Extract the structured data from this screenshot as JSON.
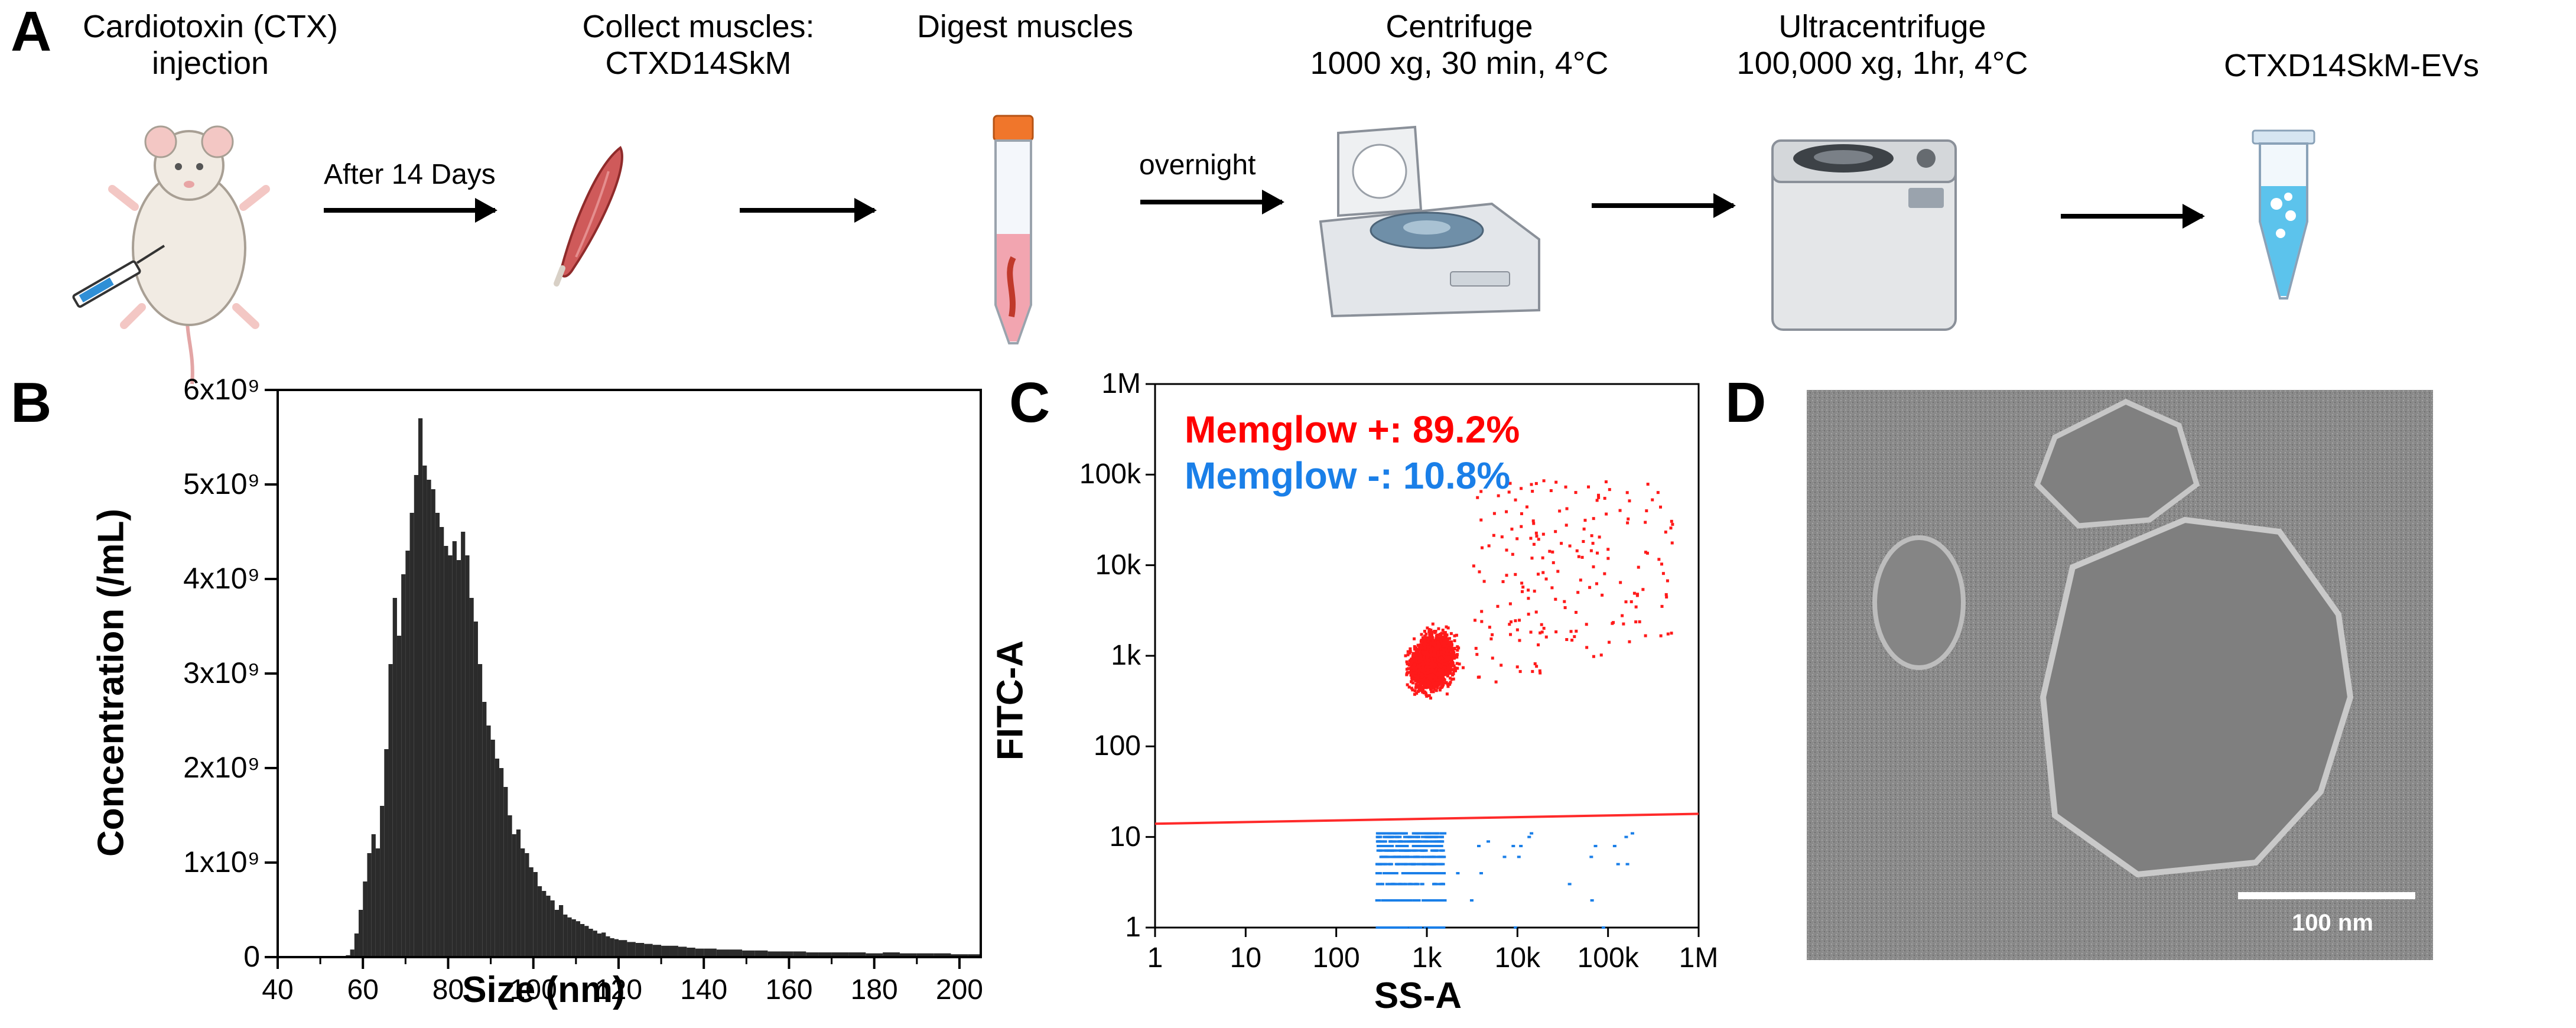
{
  "panels": {
    "a": "A",
    "b": "B",
    "c": "C",
    "d": "D"
  },
  "workflow": {
    "steps": [
      {
        "line1": "Cardiotoxin (CTX)",
        "line2": "injection"
      },
      {
        "line1": "Collect muscles:",
        "line2": "CTXD14SkM"
      },
      {
        "line1": "Digest muscles",
        "line2": ""
      },
      {
        "line1": "Centrifuge",
        "line2": "1000 xg, 30 min, 4°C"
      },
      {
        "line1": "Ultracentrifuge",
        "line2": "100,000 xg, 1hr, 4°C"
      },
      {
        "line1": "CTXD14SkM-EVs",
        "line2": ""
      }
    ],
    "arrow_labels": [
      "After 14 Days",
      "",
      "overnight",
      "",
      ""
    ]
  },
  "chart_data": [
    {
      "type": "bar",
      "id": "B",
      "title": "",
      "xlabel": "Size (nm)",
      "ylabel": "Concentration (/mL)",
      "xlim": [
        40,
        205
      ],
      "ylim": [
        0,
        6000000000
      ],
      "xticks": [
        "40",
        "60",
        "80",
        "100",
        "120",
        "140",
        "160",
        "180",
        "200"
      ],
      "yticks": [
        "0",
        "1x10⁹",
        "2x10⁹",
        "3x10⁹",
        "4x10⁹",
        "5x10⁹",
        "6x10⁹"
      ],
      "bin_width_nm": 1,
      "x": [
        56,
        57,
        58,
        59,
        60,
        61,
        62,
        63,
        64,
        65,
        66,
        67,
        68,
        69,
        70,
        71,
        72,
        73,
        74,
        75,
        76,
        77,
        78,
        79,
        80,
        81,
        82,
        83,
        84,
        85,
        86,
        87,
        88,
        89,
        90,
        91,
        92,
        93,
        94,
        95,
        96,
        97,
        98,
        99,
        100,
        101,
        102,
        103,
        104,
        105,
        106,
        107,
        108,
        109,
        110,
        111,
        112,
        113,
        114,
        115,
        116,
        117,
        118,
        119,
        120,
        122,
        124,
        126,
        128,
        130,
        132,
        134,
        136,
        138,
        140,
        143,
        146,
        149,
        152,
        155,
        158,
        161,
        164,
        167,
        170,
        174,
        178,
        182,
        186,
        190,
        194,
        198,
        202
      ],
      "values_e9": [
        0.02,
        0.08,
        0.25,
        0.5,
        0.8,
        1.1,
        1.3,
        1.15,
        1.6,
        2.2,
        3.1,
        3.8,
        3.4,
        4.05,
        4.3,
        4.7,
        5.1,
        5.7,
        5.2,
        5.05,
        4.95,
        4.7,
        4.55,
        4.35,
        4.25,
        4.4,
        4.2,
        4.5,
        4.25,
        3.8,
        3.55,
        3.1,
        2.7,
        2.45,
        2.3,
        2.1,
        2.0,
        1.8,
        1.5,
        1.3,
        1.35,
        1.15,
        1.1,
        0.95,
        0.9,
        0.75,
        0.7,
        0.65,
        0.6,
        0.5,
        0.55,
        0.45,
        0.42,
        0.4,
        0.38,
        0.35,
        0.33,
        0.3,
        0.28,
        0.25,
        0.26,
        0.22,
        0.2,
        0.19,
        0.18,
        0.16,
        0.15,
        0.14,
        0.13,
        0.12,
        0.12,
        0.11,
        0.1,
        0.09,
        0.09,
        0.08,
        0.08,
        0.07,
        0.07,
        0.06,
        0.06,
        0.06,
        0.05,
        0.05,
        0.05,
        0.05,
        0.04,
        0.05,
        0.04,
        0.04,
        0.04,
        0.03,
        0.03
      ]
    },
    {
      "type": "scatter",
      "id": "C",
      "xlabel": "SS-A",
      "ylabel": "FITC-A",
      "xscale": "log",
      "yscale": "log",
      "xlim": [
        1,
        1000000
      ],
      "ylim": [
        1,
        1000000
      ],
      "xticks": [
        "1",
        "10",
        "100",
        "1k",
        "10k",
        "100k",
        "1M"
      ],
      "yticks": [
        "1",
        "10",
        "100",
        "1k",
        "10k",
        "100k",
        "1M"
      ],
      "gate_threshold_left": 14,
      "gate_threshold_right": 18,
      "annotations": [
        {
          "text": "Memglow +: 89.2%",
          "color": "#ff0000"
        },
        {
          "text": "Memglow -: 10.8%",
          "color": "#1a7fe8"
        }
      ],
      "series": [
        {
          "name": "Memglow +",
          "color": "#ff1a1a",
          "percent": 89.2
        },
        {
          "name": "Memglow -",
          "color": "#1a7fe8",
          "percent": 10.8
        }
      ]
    }
  ],
  "tem": {
    "scale_label": "100 nm"
  }
}
